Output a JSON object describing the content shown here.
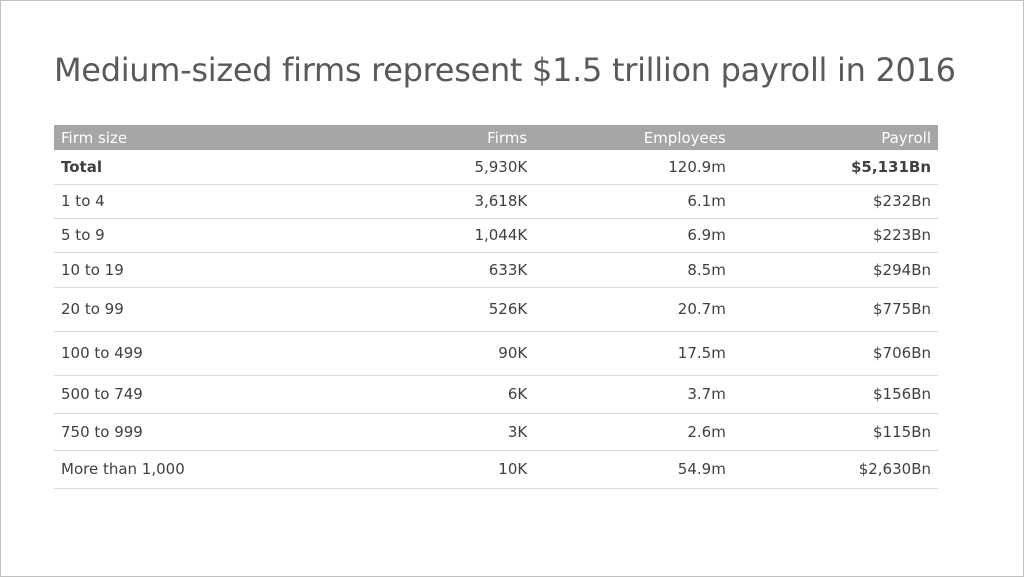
{
  "title": "Medium-sized firms represent $1.5 trillion payroll in 2016",
  "table": {
    "headers": [
      "Firm size",
      "Firms",
      "Employees",
      "Payroll"
    ],
    "rows": [
      {
        "size": "Total",
        "firms": "5,930K",
        "employees": "120.9m",
        "payroll": "$5,131Bn"
      },
      {
        "size": "1 to 4",
        "firms": "3,618K",
        "employees": "6.1m",
        "payroll": "$232Bn"
      },
      {
        "size": "5 to 9",
        "firms": "1,044K",
        "employees": "6.9m",
        "payroll": "$223Bn"
      },
      {
        "size": "10 to 19",
        "firms": "633K",
        "employees": "8.5m",
        "payroll": "$294Bn"
      },
      {
        "size": "20 to 99",
        "firms": "526K",
        "employees": "20.7m",
        "payroll": "$775Bn"
      },
      {
        "size": "100 to 499",
        "firms": "90K",
        "employees": "17.5m",
        "payroll": "$706Bn"
      },
      {
        "size": "500 to 749",
        "firms": "6K",
        "employees": "3.7m",
        "payroll": "$156Bn"
      },
      {
        "size": "750 to 999",
        "firms": "3K",
        "employees": "2.6m",
        "payroll": "$115Bn"
      },
      {
        "size": "More than 1,000",
        "firms": "10K",
        "employees": "54.9m",
        "payroll": "$2,630Bn"
      }
    ]
  }
}
